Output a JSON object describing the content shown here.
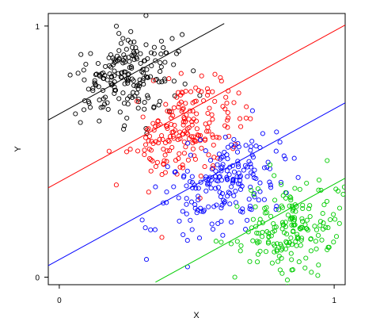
{
  "chart_data": {
    "type": "scatter",
    "title": "",
    "xlabel": "X",
    "ylabel": "Y",
    "xlim": [
      -0.04,
      1.04
    ],
    "ylim": [
      -0.03,
      1.05
    ],
    "x_ticks": [
      0,
      1
    ],
    "x_tick_labels": [
      "0",
      "1"
    ],
    "y_ticks": [
      0,
      1
    ],
    "y_tick_labels": [
      "0",
      "1"
    ],
    "grid": false,
    "legend": "none",
    "series": [
      {
        "color": "#000000",
        "n_points": 200,
        "center": [
          0.25,
          0.8
        ],
        "spread": [
          0.09,
          0.08
        ],
        "corr": 0.25,
        "fit_line": {
          "intercept": 0.65,
          "slope": 0.6,
          "x_range": [
            -0.04,
            0.6
          ]
        }
      },
      {
        "color": "#ff0000",
        "n_points": 200,
        "center": [
          0.45,
          0.58
        ],
        "spread": [
          0.1,
          0.1
        ],
        "corr": 0.3,
        "fit_line": {
          "intercept": 0.38,
          "slope": 0.6,
          "x_range": [
            -0.04,
            1.04
          ]
        }
      },
      {
        "color": "#0000ff",
        "n_points": 200,
        "center": [
          0.6,
          0.37
        ],
        "spread": [
          0.11,
          0.1
        ],
        "corr": 0.35,
        "fit_line": {
          "intercept": 0.07,
          "slope": 0.6,
          "x_range": [
            -0.04,
            1.04
          ]
        }
      },
      {
        "color": "#00cc00",
        "n_points": 200,
        "center": [
          0.84,
          0.19
        ],
        "spread": [
          0.09,
          0.1
        ],
        "corr": 0.25,
        "fit_line": {
          "intercept": -0.23,
          "slope": 0.6,
          "x_range": [
            0.35,
            1.04
          ]
        }
      }
    ]
  }
}
